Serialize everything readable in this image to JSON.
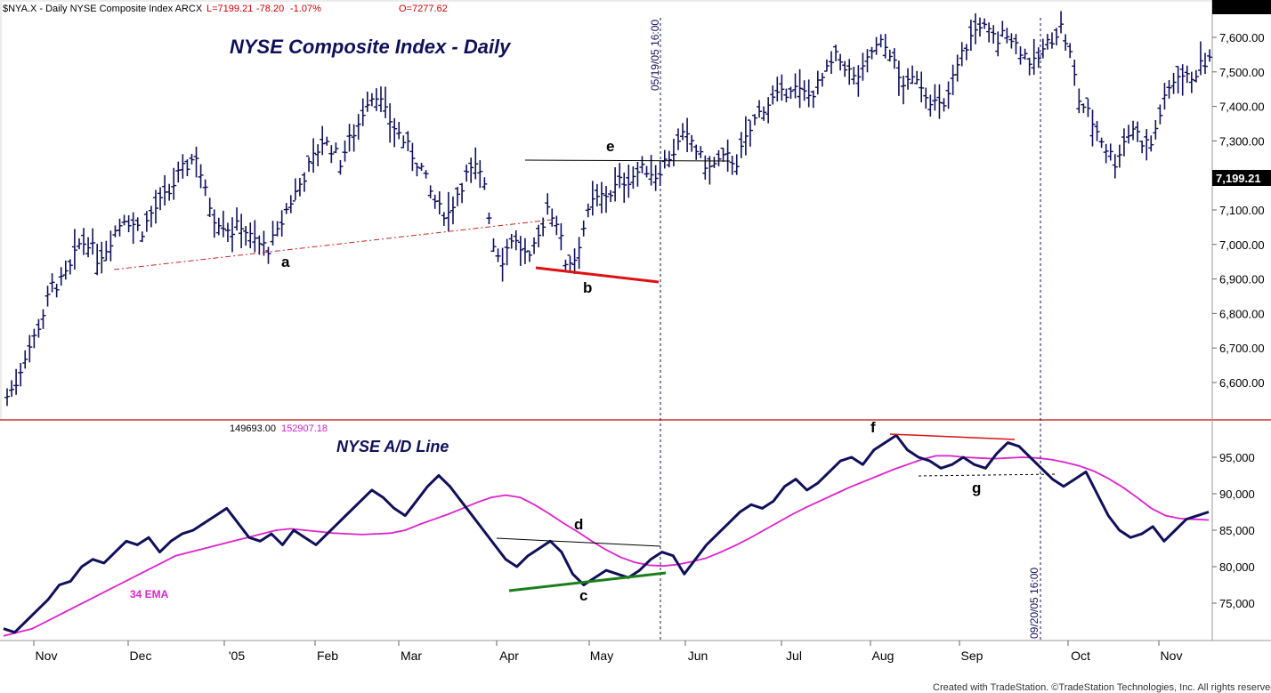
{
  "header": {
    "symbol_info": "$NYA.X - Daily  NYSE Composite Index  ARCX",
    "last": "L=7199.21",
    "change": "-78.20",
    "change_pct": "-1.07%",
    "open": "O=7277.62"
  },
  "footer": {
    "credit": "Created with TradeStation. ©TradeStation Technologies, Inc. All rights reserved."
  },
  "colors": {
    "navy": "#10105a",
    "price_red": "#cc0000",
    "ema_magenta": "#dd22cc",
    "support_green": "#1a7f1a",
    "dashed_red": "#cc2222",
    "panel_divider": "#cc3333"
  },
  "chart_data": [
    {
      "type": "ohlc",
      "title": "NYSE Composite Index - Daily",
      "ylim": [
        6500,
        7680
      ],
      "yticks": [
        "7,600.00",
        "7,500.00",
        "7,400.00",
        "7,300.00",
        "7,200.00",
        "7,100.00",
        "7,000.00",
        "6,900.00",
        "6,800.00",
        "6,700.00",
        "6,600.00"
      ],
      "yticks_values": [
        7600,
        7500,
        7400,
        7300,
        7200,
        7100,
        7000,
        6900,
        6800,
        6700,
        6600
      ],
      "last_price_label": "7,199.21",
      "last_price_value": 7199.21,
      "vertical_marker": "05/19/05 16:00",
      "annotations": [
        {
          "text": "a",
          "note": "rising support trendline (dashed red)",
          "from": [
            "2004-11-22",
            6930
          ],
          "to": [
            "2005-04-12",
            7070
          ]
        },
        {
          "text": "b",
          "note": "declining lows (solid red)",
          "from": [
            "2005-04-01",
            6935
          ],
          "to": [
            "2005-05-20",
            6890
          ]
        },
        {
          "text": "e",
          "note": "horizontal resistance",
          "from": [
            "2005-04-04",
            7245
          ],
          "to": [
            "2005-06-14",
            7240
          ]
        }
      ],
      "price_series": [
        {
          "d": 1,
          "v": 6560
        },
        {
          "d": 3,
          "v": 6600
        },
        {
          "d": 5,
          "v": 6680
        },
        {
          "d": 7,
          "v": 6730
        },
        {
          "d": 9,
          "v": 6800
        },
        {
          "d": 11,
          "v": 6880
        },
        {
          "d": 13,
          "v": 6890
        },
        {
          "d": 15,
          "v": 6930
        },
        {
          "d": 17,
          "v": 7000
        },
        {
          "d": 19,
          "v": 7010
        },
        {
          "d": 21,
          "v": 6960
        },
        {
          "d": 23,
          "v": 6990
        },
        {
          "d": 25,
          "v": 7040
        },
        {
          "d": 27,
          "v": 7080
        },
        {
          "d": 29,
          "v": 7060
        },
        {
          "d": 31,
          "v": 7040
        },
        {
          "d": 33,
          "v": 7090
        },
        {
          "d": 35,
          "v": 7120
        },
        {
          "d": 37,
          "v": 7150
        },
        {
          "d": 39,
          "v": 7200
        },
        {
          "d": 41,
          "v": 7230
        },
        {
          "d": 43,
          "v": 7260
        },
        {
          "d": 45,
          "v": 7150
        },
        {
          "d": 47,
          "v": 7080
        },
        {
          "d": 49,
          "v": 7060
        },
        {
          "d": 51,
          "v": 7040
        },
        {
          "d": 53,
          "v": 7060
        },
        {
          "d": 55,
          "v": 7020
        },
        {
          "d": 57,
          "v": 7000
        },
        {
          "d": 59,
          "v": 6990
        },
        {
          "d": 61,
          "v": 7030
        },
        {
          "d": 63,
          "v": 7100
        },
        {
          "d": 65,
          "v": 7150
        },
        {
          "d": 67,
          "v": 7200
        },
        {
          "d": 69,
          "v": 7250
        },
        {
          "d": 71,
          "v": 7300
        },
        {
          "d": 73,
          "v": 7280
        },
        {
          "d": 75,
          "v": 7240
        },
        {
          "d": 77,
          "v": 7300
        },
        {
          "d": 79,
          "v": 7350
        },
        {
          "d": 81,
          "v": 7420
        },
        {
          "d": 83,
          "v": 7440
        },
        {
          "d": 85,
          "v": 7380
        },
        {
          "d": 87,
          "v": 7340
        },
        {
          "d": 89,
          "v": 7300
        },
        {
          "d": 91,
          "v": 7260
        },
        {
          "d": 93,
          "v": 7220
        },
        {
          "d": 95,
          "v": 7150
        },
        {
          "d": 97,
          "v": 7100
        },
        {
          "d": 99,
          "v": 7090
        },
        {
          "d": 101,
          "v": 7150
        },
        {
          "d": 103,
          "v": 7200
        },
        {
          "d": 105,
          "v": 7220
        },
        {
          "d": 107,
          "v": 7180
        },
        {
          "d": 109,
          "v": 7000
        },
        {
          "d": 111,
          "v": 6960
        },
        {
          "d": 113,
          "v": 7020
        },
        {
          "d": 115,
          "v": 6990
        },
        {
          "d": 117,
          "v": 6950
        },
        {
          "d": 119,
          "v": 7020
        },
        {
          "d": 121,
          "v": 7110
        },
        {
          "d": 123,
          "v": 7070
        },
        {
          "d": 125,
          "v": 6950
        },
        {
          "d": 127,
          "v": 6960
        },
        {
          "d": 129,
          "v": 7050
        },
        {
          "d": 131,
          "v": 7120
        },
        {
          "d": 133,
          "v": 7140
        },
        {
          "d": 135,
          "v": 7150
        },
        {
          "d": 137,
          "v": 7180
        },
        {
          "d": 139,
          "v": 7190
        },
        {
          "d": 141,
          "v": 7210
        },
        {
          "d": 143,
          "v": 7220
        },
        {
          "d": 145,
          "v": 7200
        },
        {
          "d": 147,
          "v": 7240
        },
        {
          "d": 149,
          "v": 7270
        },
        {
          "d": 151,
          "v": 7310
        },
        {
          "d": 153,
          "v": 7300
        },
        {
          "d": 155,
          "v": 7250
        },
        {
          "d": 157,
          "v": 7220
        },
        {
          "d": 159,
          "v": 7240
        },
        {
          "d": 161,
          "v": 7250
        },
        {
          "d": 163,
          "v": 7240
        },
        {
          "d": 165,
          "v": 7300
        },
        {
          "d": 167,
          "v": 7360
        },
        {
          "d": 169,
          "v": 7400
        },
        {
          "d": 171,
          "v": 7420
        },
        {
          "d": 173,
          "v": 7430
        },
        {
          "d": 175,
          "v": 7460
        },
        {
          "d": 177,
          "v": 7440
        },
        {
          "d": 179,
          "v": 7430
        },
        {
          "d": 181,
          "v": 7460
        },
        {
          "d": 183,
          "v": 7500
        },
        {
          "d": 185,
          "v": 7540
        },
        {
          "d": 187,
          "v": 7520
        },
        {
          "d": 189,
          "v": 7480
        },
        {
          "d": 191,
          "v": 7500
        },
        {
          "d": 193,
          "v": 7560
        },
        {
          "d": 195,
          "v": 7580
        },
        {
          "d": 197,
          "v": 7560
        },
        {
          "d": 199,
          "v": 7480
        },
        {
          "d": 201,
          "v": 7460
        },
        {
          "d": 203,
          "v": 7490
        },
        {
          "d": 205,
          "v": 7440
        },
        {
          "d": 207,
          "v": 7410
        },
        {
          "d": 209,
          "v": 7390
        },
        {
          "d": 211,
          "v": 7480
        },
        {
          "d": 213,
          "v": 7550
        },
        {
          "d": 215,
          "v": 7600
        },
        {
          "d": 217,
          "v": 7640
        },
        {
          "d": 219,
          "v": 7610
        },
        {
          "d": 221,
          "v": 7590
        },
        {
          "d": 223,
          "v": 7620
        },
        {
          "d": 225,
          "v": 7580
        },
        {
          "d": 227,
          "v": 7550
        },
        {
          "d": 229,
          "v": 7520
        },
        {
          "d": 231,
          "v": 7560
        },
        {
          "d": 233,
          "v": 7600
        },
        {
          "d": 235,
          "v": 7630
        },
        {
          "d": 237,
          "v": 7550
        },
        {
          "d": 239,
          "v": 7420
        },
        {
          "d": 241,
          "v": 7380
        },
        {
          "d": 243,
          "v": 7330
        },
        {
          "d": 245,
          "v": 7280
        },
        {
          "d": 247,
          "v": 7240
        },
        {
          "d": 249,
          "v": 7300
        },
        {
          "d": 251,
          "v": 7340
        },
        {
          "d": 253,
          "v": 7300
        },
        {
          "d": 255,
          "v": 7290
        },
        {
          "d": 257,
          "v": 7380
        },
        {
          "d": 259,
          "v": 7450
        },
        {
          "d": 261,
          "v": 7500
        },
        {
          "d": 263,
          "v": 7480
        },
        {
          "d": 265,
          "v": 7500
        },
        {
          "d": 267,
          "v": 7530
        }
      ]
    },
    {
      "type": "line",
      "title": "NYSE A/D Line",
      "values_header": [
        "149693.00",
        "152907.18"
      ],
      "ylim": [
        70000,
        100000
      ],
      "yticks": [
        "95,000",
        "90,000",
        "85,000",
        "80,000",
        "75,000"
      ],
      "yticks_values": [
        95000,
        90000,
        85000,
        80000,
        75000
      ],
      "ema_label": "34 EMA",
      "vertical_marker": "09/20/05 16:00",
      "annotations": [
        {
          "text": "c",
          "note": "rising support (green)"
        },
        {
          "text": "d",
          "note": "declining resistance"
        },
        {
          "text": "f",
          "note": "declining highs (red)"
        },
        {
          "text": "g",
          "note": "horizontal support (dotted)"
        }
      ],
      "series": [
        {
          "name": "NYSE A/D Line",
          "values": [
            71500,
            71000,
            72500,
            74000,
            75500,
            77500,
            78000,
            80000,
            81000,
            80500,
            82000,
            83500,
            83000,
            84000,
            82000,
            83500,
            84500,
            85000,
            86000,
            87000,
            88000,
            86000,
            84000,
            83500,
            84500,
            83000,
            85000,
            84000,
            83000,
            84500,
            86000,
            87500,
            89000,
            90500,
            89500,
            88000,
            87000,
            89000,
            91000,
            92500,
            91000,
            89000,
            87000,
            85000,
            83000,
            81000,
            80000,
            81500,
            82500,
            83500,
            82000,
            79000,
            77500,
            78500,
            79500,
            79000,
            78500,
            79500,
            81000,
            82000,
            81500,
            79000,
            81000,
            83000,
            84500,
            86000,
            87500,
            88500,
            88000,
            89000,
            91000,
            92000,
            90500,
            91500,
            93000,
            94500,
            95000,
            94000,
            96000,
            97000,
            98000,
            96000,
            95000,
            94500,
            93500,
            94000,
            95000,
            94000,
            93500,
            95500,
            97000,
            96500,
            95000,
            93500,
            92000,
            91000,
            92000,
            93000,
            90000,
            87000,
            85000,
            84000,
            84500,
            85500,
            83500,
            85000,
            86500,
            87000,
            87500
          ]
        },
        {
          "name": "34 EMA",
          "values": [
            70500,
            71000,
            71500,
            72500,
            73500,
            74500,
            75500,
            76500,
            77500,
            78500,
            79500,
            80500,
            81500,
            82000,
            82500,
            83000,
            83500,
            84000,
            84500,
            85000,
            85200,
            85000,
            84800,
            84600,
            84500,
            84400,
            84500,
            84600,
            85000,
            85800,
            86500,
            87200,
            88000,
            88800,
            89500,
            89800,
            89500,
            88500,
            87300,
            86000,
            84800,
            83500,
            82300,
            81300,
            80600,
            80200,
            80100,
            80300,
            80700,
            81200,
            82000,
            82900,
            83900,
            85000,
            86100,
            87200,
            88200,
            89100,
            90000,
            90900,
            91700,
            92500,
            93300,
            94000,
            94700,
            95200,
            95200,
            95000,
            94900,
            94800,
            94900,
            95000,
            94900,
            94700,
            94300,
            93800,
            93100,
            92100,
            90900,
            89500,
            88000,
            87000,
            86600,
            86500,
            86400
          ]
        }
      ]
    }
  ],
  "axes": {
    "x_ticks": [
      "Nov",
      "Dec",
      "'05",
      "Feb",
      "Mar",
      "Apr",
      "May",
      "Jun",
      "Jul",
      "Aug",
      "Sep",
      "Oct",
      "Nov"
    ]
  },
  "labels": {
    "a": "a",
    "b": "b",
    "c": "c",
    "d": "d",
    "e": "e",
    "f": "f",
    "g": "g"
  }
}
